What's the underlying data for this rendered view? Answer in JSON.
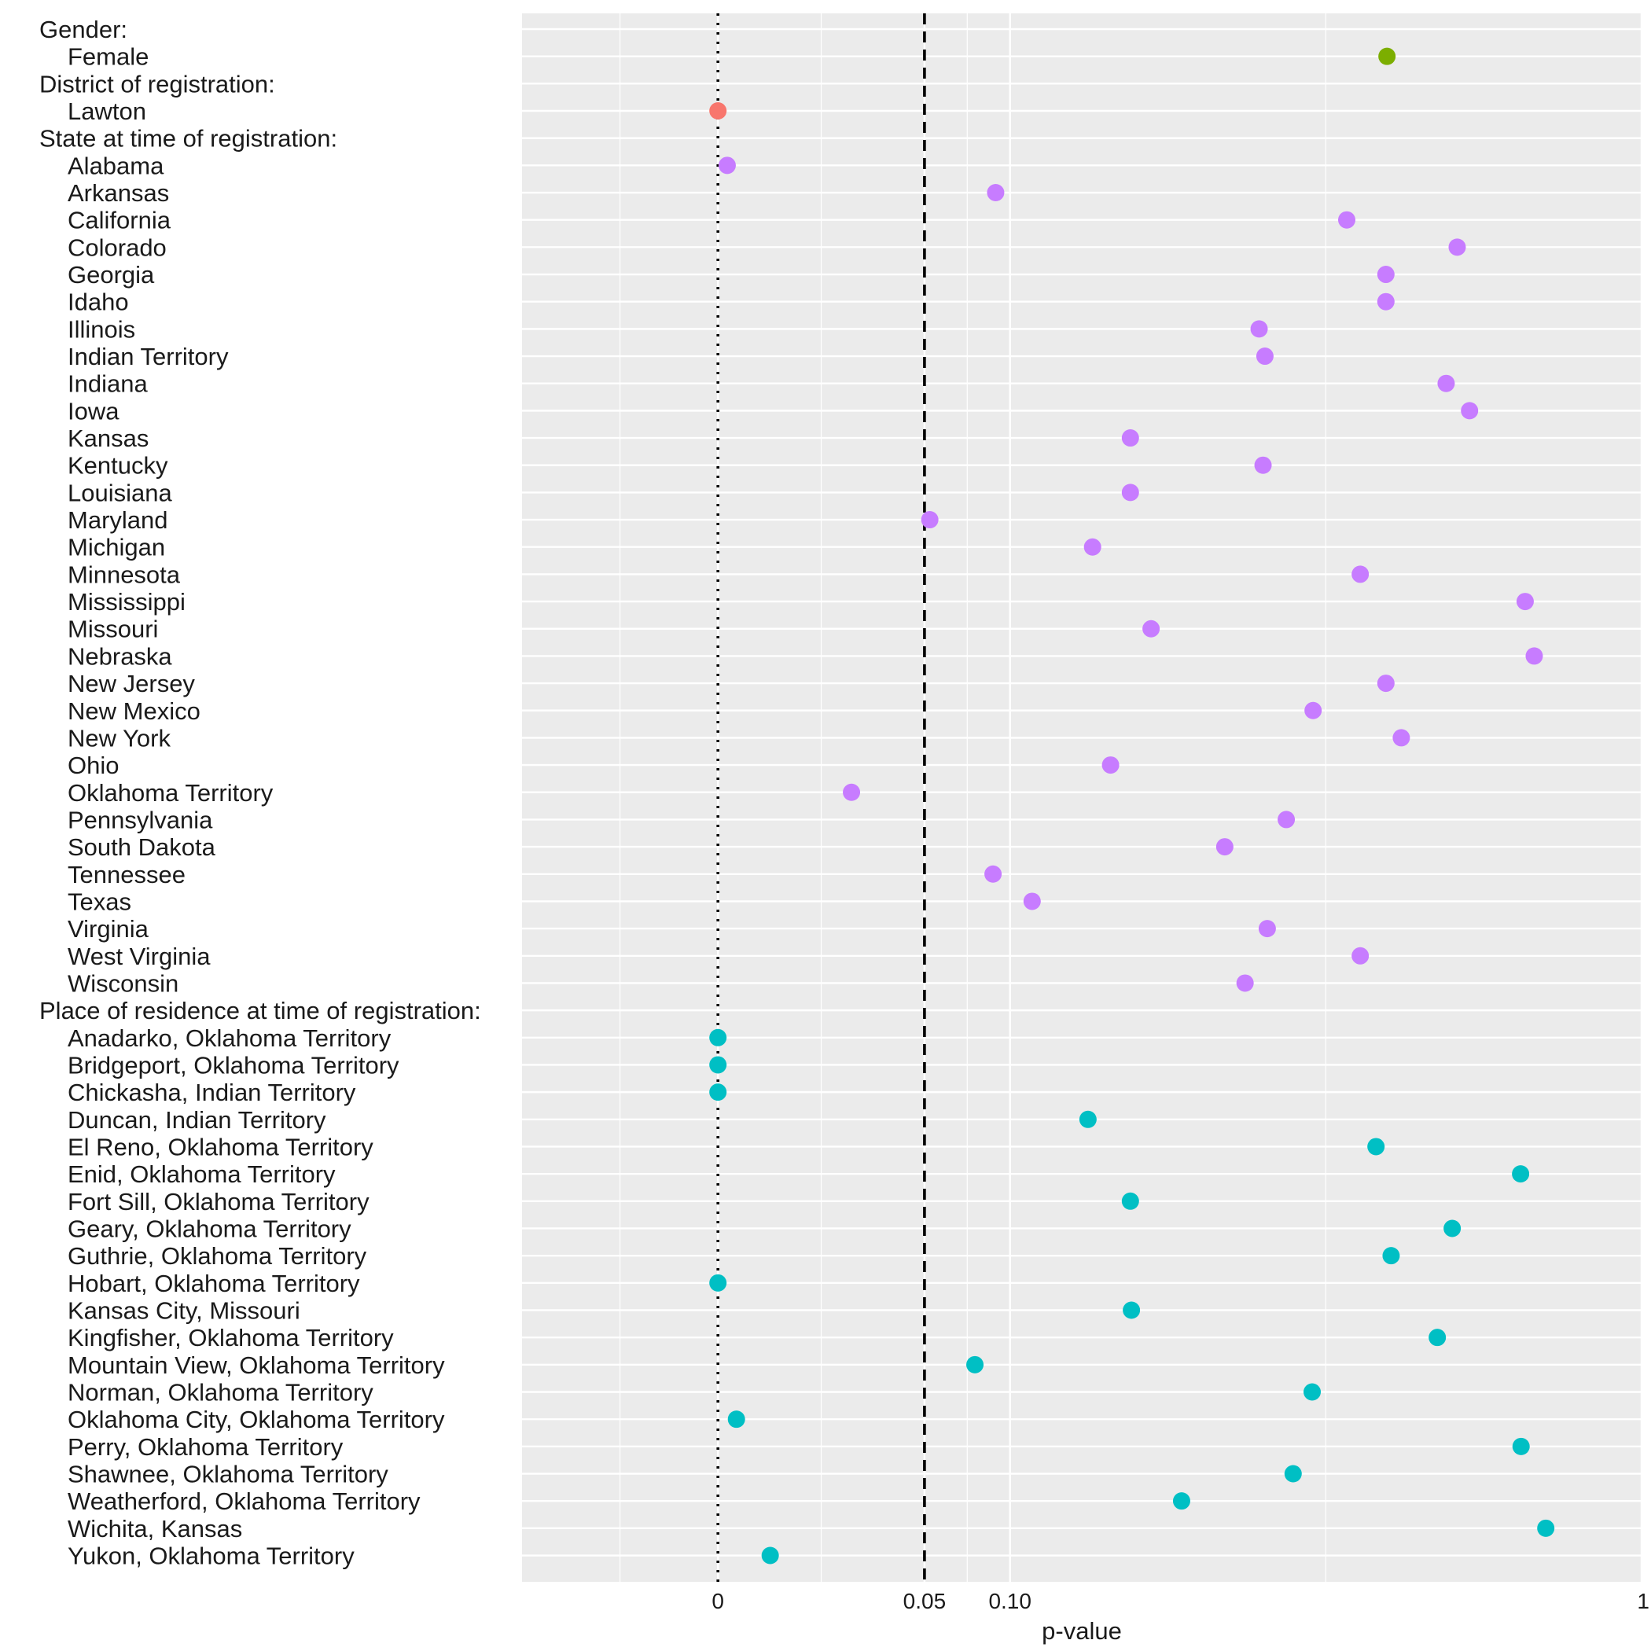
{
  "chart_data": {
    "type": "scatter",
    "title": "",
    "xlabel": "p-value",
    "ylabel": "",
    "xlim": [
      -0.045,
      1.0
    ],
    "scale": "sqrt",
    "x_ticks": [
      {
        "value": 0,
        "label": "0"
      },
      {
        "value": 0.05,
        "label": "0.05"
      },
      {
        "value": 0.1,
        "label": "0.10"
      },
      {
        "value": 1,
        "label": "1"
      }
    ],
    "reference_lines": [
      {
        "value": 0,
        "style": "dotted"
      },
      {
        "value": 0.05,
        "style": "dashed"
      }
    ],
    "groups": [
      {
        "name": "Gender:",
        "color": "#7CAE00",
        "items": [
          {
            "label": "Female",
            "p": 0.5247
          }
        ]
      },
      {
        "name": "District of registration:",
        "color": "#F8766D",
        "items": [
          {
            "label": "Lawton",
            "p": 0.0
          }
        ]
      },
      {
        "name": "State at time of registration:",
        "color": "#C77CFF",
        "items": [
          {
            "label": "Alabama",
            "p": 0.0001
          },
          {
            "label": "Arkansas",
            "p": 0.0904
          },
          {
            "label": "California",
            "p": 0.4635
          },
          {
            "label": "Colorado",
            "p": 0.6406
          },
          {
            "label": "Georgia",
            "p": 0.523
          },
          {
            "label": "Idaho",
            "p": 0.523
          },
          {
            "label": "Illinois",
            "p": 0.3433
          },
          {
            "label": "Indian Territory",
            "p": 0.3507
          },
          {
            "label": "Indiana",
            "p": 0.6216
          },
          {
            "label": "Iowa",
            "p": 0.6622
          },
          {
            "label": "Kansas",
            "p": 0.1994
          },
          {
            "label": "Kentucky",
            "p": 0.3483
          },
          {
            "label": "Louisiana",
            "p": 0.1994
          },
          {
            "label": "Maryland",
            "p": 0.0526
          },
          {
            "label": "Michigan",
            "p": 0.1645
          },
          {
            "label": "Minnesota",
            "p": 0.4836
          },
          {
            "label": "Mississippi",
            "p": 0.7638
          },
          {
            "label": "Missouri",
            "p": 0.2199
          },
          {
            "label": "Nebraska",
            "p": 0.7811
          },
          {
            "label": "New Jersey",
            "p": 0.523
          },
          {
            "label": "New Mexico",
            "p": 0.4152
          },
          {
            "label": "New York",
            "p": 0.5474
          },
          {
            "label": "Ohio",
            "p": 0.1807
          },
          {
            "label": "Oklahoma Territory",
            "p": 0.0209
          },
          {
            "label": "Pennsylvania",
            "p": 0.3786
          },
          {
            "label": "South Dakota",
            "p": 0.3011
          },
          {
            "label": "Tennessee",
            "p": 0.0887
          },
          {
            "label": "Texas",
            "p": 0.1157
          },
          {
            "label": "Virginia",
            "p": 0.3537
          },
          {
            "label": "West Virginia",
            "p": 0.4836
          },
          {
            "label": "Wisconsin",
            "p": 0.3257
          }
        ]
      },
      {
        "name": "Place of residence at time of registration:",
        "color": "#00BFC4",
        "items": [
          {
            "label": "Anadarko, Oklahoma Territory",
            "p": 0.0
          },
          {
            "label": "Bridgeport, Oklahoma Territory",
            "p": 0.0
          },
          {
            "label": "Chickasha, Indian Territory",
            "p": 0.0
          },
          {
            "label": "Duncan, Indian Territory",
            "p": 0.1605
          },
          {
            "label": "El Reno, Oklahoma Territory",
            "p": 0.5076
          },
          {
            "label": "Enid, Oklahoma Territory",
            "p": 0.7552
          },
          {
            "label": "Fort Sill, Oklahoma Territory",
            "p": 0.1994
          },
          {
            "label": "Geary, Oklahoma Territory",
            "p": 0.632
          },
          {
            "label": "Guthrie, Oklahoma Territory",
            "p": 0.5312
          },
          {
            "label": "Hobart, Oklahoma Territory",
            "p": 0.0
          },
          {
            "label": "Kansas City, Missouri",
            "p": 0.2004
          },
          {
            "label": "Kingfisher, Oklahoma Territory",
            "p": 0.6066
          },
          {
            "label": "Mountain View, Oklahoma Territory",
            "p": 0.0774
          },
          {
            "label": "Norman, Oklahoma Territory",
            "p": 0.4139
          },
          {
            "label": "Oklahoma City, Oklahoma Territory",
            "p": 0.0004
          },
          {
            "label": "Perry, Oklahoma Territory",
            "p": 0.7561
          },
          {
            "label": "Shawnee, Oklahoma Territory",
            "p": 0.3878
          },
          {
            "label": "Weatherford, Oklahoma Territory",
            "p": 0.252
          },
          {
            "label": "Wichita, Kansas",
            "p": 0.8034
          },
          {
            "label": "Yukon, Oklahoma Territory",
            "p": 0.0032
          }
        ]
      }
    ]
  }
}
